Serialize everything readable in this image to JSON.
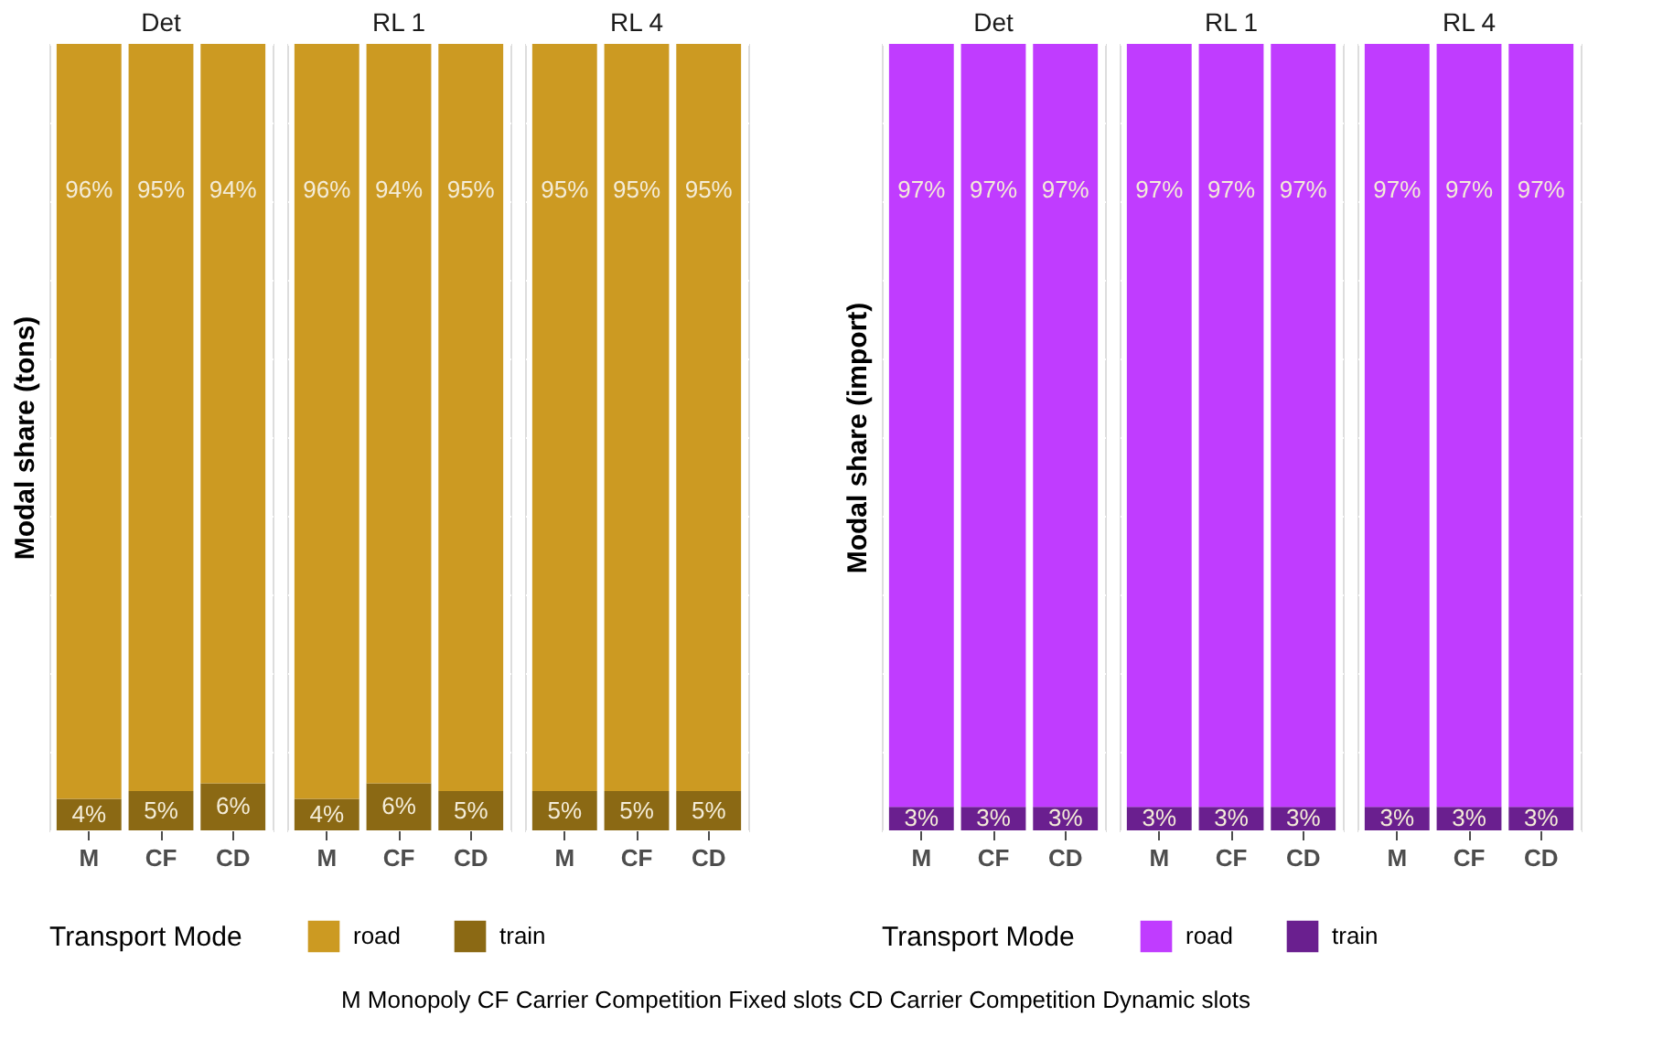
{
  "chart_data": [
    {
      "type": "bar",
      "stacked": true,
      "title": "Det",
      "ylabel": "Modal share (tons)",
      "categories": [
        "M",
        "CF",
        "CD"
      ],
      "legend_title": "Transport Mode",
      "legend": "bottom",
      "grid": "y",
      "tick_labels": "x",
      "data_labels": true,
      "annotations": [
        "M Monopoly    CF  Carrier Competition Fixed slots     CD Carrier Competition Dynamic slots"
      ],
      "series": [
        {
          "name": "train",
          "color": "#8b6914",
          "values": [
            4,
            5,
            6
          ],
          "value_labels": [
            "4%",
            "5%",
            "6%"
          ]
        },
        {
          "name": "road",
          "color": "#cc9a22",
          "values": [
            96,
            95,
            94
          ],
          "value_labels": [
            "96%",
            "95%",
            "94%"
          ]
        }
      ]
    },
    {
      "type": "bar",
      "stacked": true,
      "title": "RL 1",
      "categories": [
        "M",
        "CF",
        "CD"
      ],
      "grid": "y",
      "tick_labels": "x",
      "data_labels": true,
      "series": [
        {
          "color": "#8b6914",
          "values": [
            4,
            6,
            5
          ],
          "value_labels": [
            "4%",
            "6%",
            "5%"
          ]
        },
        {
          "color": "#cc9a22",
          "values": [
            96,
            94,
            95
          ],
          "value_labels": [
            "96%",
            "94%",
            "95%"
          ]
        }
      ]
    },
    {
      "type": "bar",
      "stacked": true,
      "title": "RL 4",
      "categories": [
        "M",
        "CF",
        "CD"
      ],
      "grid": "y",
      "tick_labels": "x",
      "data_labels": true,
      "series": [
        {
          "color": "#8b6914",
          "values": [
            5,
            5,
            5
          ],
          "value_labels": [
            "5%",
            "5%",
            "5%"
          ]
        },
        {
          "color": "#cc9a22",
          "values": [
            95,
            95,
            95
          ],
          "value_labels": [
            "95%",
            "95%",
            "95%"
          ]
        }
      ]
    },
    {
      "type": "bar",
      "stacked": true,
      "title": "Det",
      "ylabel": "Modal share (import)",
      "categories": [
        "M",
        "CF",
        "CD"
      ],
      "legend_title": "Transport Mode",
      "legend": "bottom",
      "grid": "y",
      "tick_labels": "x",
      "data_labels": true,
      "series": [
        {
          "name": "train",
          "color": "#6a1f8f",
          "values": [
            3,
            3,
            3
          ],
          "value_labels": [
            "3%",
            "3%",
            "3%"
          ]
        },
        {
          "name": "road",
          "color": "#c03cff",
          "values": [
            97,
            97,
            97
          ],
          "value_labels": [
            "97%",
            "97%",
            "97%"
          ]
        }
      ]
    },
    {
      "type": "bar",
      "stacked": true,
      "title": "RL 1",
      "categories": [
        "M",
        "CF",
        "CD"
      ],
      "grid": "y",
      "tick_labels": "x",
      "data_labels": true,
      "series": [
        {
          "color": "#6a1f8f",
          "values": [
            3,
            3,
            3
          ],
          "value_labels": [
            "3%",
            "3%",
            "3%"
          ]
        },
        {
          "color": "#c03cff",
          "values": [
            97,
            97,
            97
          ],
          "value_labels": [
            "97%",
            "97%",
            "97%"
          ]
        }
      ]
    },
    {
      "type": "bar",
      "stacked": true,
      "title": "RL 4",
      "categories": [
        "M",
        "CF",
        "CD"
      ],
      "grid": "y",
      "tick_labels": "x",
      "data_labels": true,
      "series": [
        {
          "color": "#6a1f8f",
          "values": [
            3,
            3,
            3
          ],
          "value_labels": [
            "3%",
            "3%",
            "3%"
          ]
        },
        {
          "color": "#c03cff",
          "values": [
            97,
            97,
            97
          ],
          "value_labels": [
            "97%",
            "97%",
            "97%"
          ]
        }
      ]
    }
  ]
}
